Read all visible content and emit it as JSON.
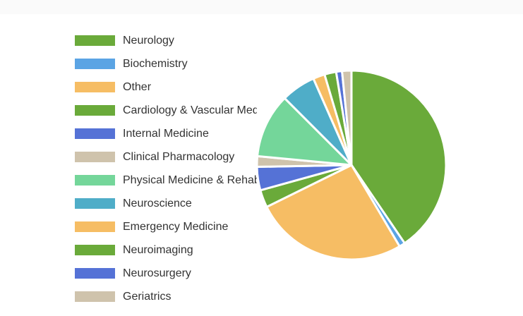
{
  "chart_data": {
    "type": "pie",
    "title": "",
    "legend_position": "left",
    "slices": [
      {
        "label": "Neurology",
        "value": 40.5,
        "color": "#6aaa3a"
      },
      {
        "label": "Biochemistry",
        "value": 1.0,
        "color": "#5ba4e4"
      },
      {
        "label": "Other",
        "value": 26.2,
        "color": "#f6bd64"
      },
      {
        "label": "Cardiology & Vascular Medicine",
        "value": 3.0,
        "color": "#6aaa3a"
      },
      {
        "label": "Internal Medicine",
        "value": 4.0,
        "color": "#5572d6"
      },
      {
        "label": "Clinical Pharmacology",
        "value": 1.8,
        "color": "#cfc3ac"
      },
      {
        "label": "Physical Medicine & Rehabilitation",
        "value": 11.0,
        "color": "#74d69a"
      },
      {
        "label": "Neuroscience",
        "value": 5.9,
        "color": "#4fadc8"
      },
      {
        "label": "Emergency Medicine",
        "value": 2.0,
        "color": "#f6bd64"
      },
      {
        "label": "Neuroimaging",
        "value": 2.0,
        "color": "#6aaa3a"
      },
      {
        "label": "Neurosurgery",
        "value": 1.0,
        "color": "#5572d6"
      },
      {
        "label": "Geriatrics",
        "value": 1.6,
        "color": "#cfc3ac"
      }
    ]
  }
}
